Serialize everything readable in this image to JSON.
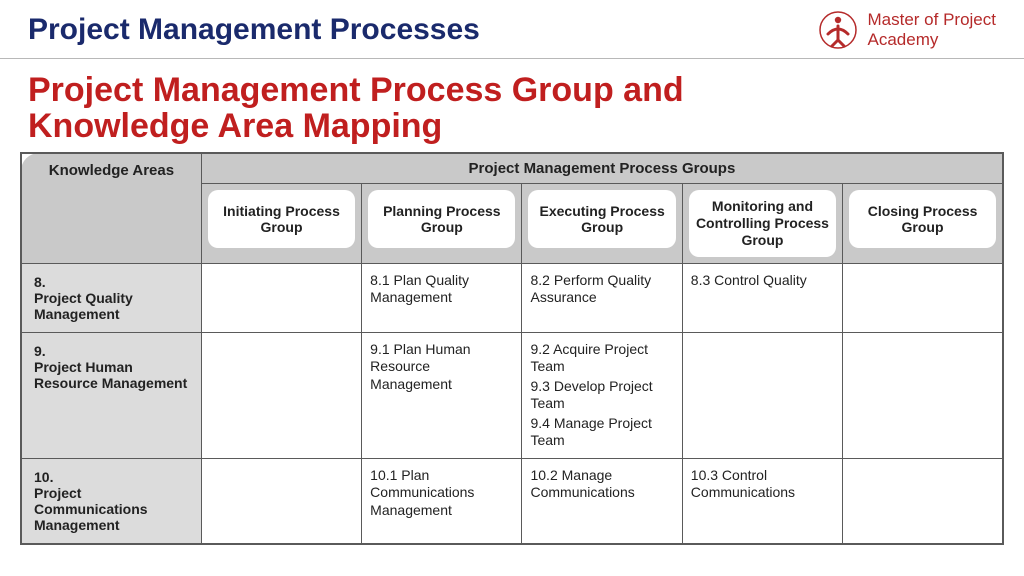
{
  "header": {
    "title": "Project Management Processes",
    "brand_line1": "Master of Project",
    "brand_line2": "Academy"
  },
  "main_heading_line1": "Project Management Process Group and",
  "main_heading_line2": "Knowledge Area Mapping",
  "table": {
    "span_header": "Project Management Process Groups",
    "ka_header": "Knowledge Areas",
    "group_headers": [
      "Initiating Process Group",
      "Planning Process Group",
      "Executing Process Group",
      "Monitoring and Controlling Process Group",
      "Closing Process Group"
    ],
    "rows": [
      {
        "num": "8.",
        "name": "Project Quality Management",
        "cells": [
          "",
          "8.1 Plan Quality Management",
          "8.2 Perform Quality Assurance",
          "8.3 Control Quality",
          ""
        ]
      },
      {
        "num": "9.",
        "name": "Project Human Resource Management",
        "cells": [
          "",
          "9.1 Plan Human Resource Management",
          "9.2 Acquire Project Team\n9.3 Develop Project Team\n9.4 Manage Project Team",
          "",
          ""
        ]
      },
      {
        "num": "10.",
        "name": "Project Communications Management",
        "cells": [
          "",
          "10.1 Plan Communications Management",
          "10.2 Manage Communications",
          "10.3 Control Communications",
          ""
        ]
      }
    ]
  },
  "colors": {
    "header_title": "#1a2a6c",
    "brand_text": "#b52a2a",
    "main_heading": "#c01f1f",
    "table_border": "#5a5a5a",
    "table_header_bg": "#c9c9c9",
    "ka_cell_bg": "#dcdcdc",
    "body_bg": "#ffffff"
  }
}
